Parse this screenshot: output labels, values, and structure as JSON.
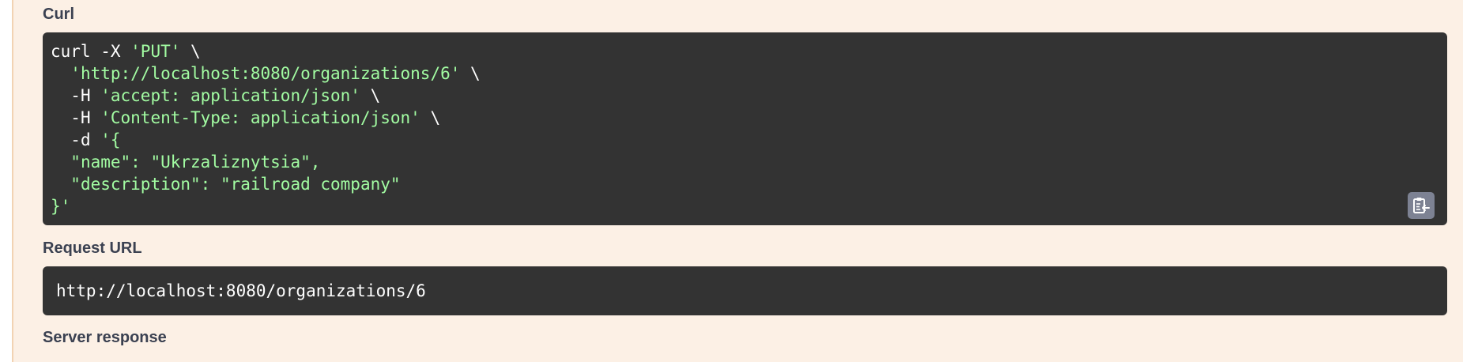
{
  "sections": {
    "curl_label": "Curl",
    "request_url_label": "Request URL",
    "server_response_label": "Server response"
  },
  "curl": {
    "l1_cmd": "curl -X ",
    "l1_method": "'PUT'",
    "l1_cont": " \\",
    "l2_url": "'http://localhost:8080/organizations/6'",
    "l2_cont": " \\",
    "l3_flag": "-H ",
    "l3_header": "'accept: application/json'",
    "l3_cont": " \\",
    "l4_flag": "-H ",
    "l4_header": "'Content-Type: application/json'",
    "l4_cont": " \\",
    "l5_flag": "-d ",
    "l5_body": "'{",
    "l6": "\"name\": \"Ukrzaliznytsia\",",
    "l7": "\"description\": \"railroad company\"",
    "l8": "}'"
  },
  "request_url": "http://localhost:8080/organizations/6",
  "icons": {
    "copy": "clipboard-copy-icon"
  },
  "colors": {
    "panel_bg": "#fcf0e5",
    "code_bg": "#333333",
    "string": "#a2fca2",
    "label": "#3b4151"
  }
}
